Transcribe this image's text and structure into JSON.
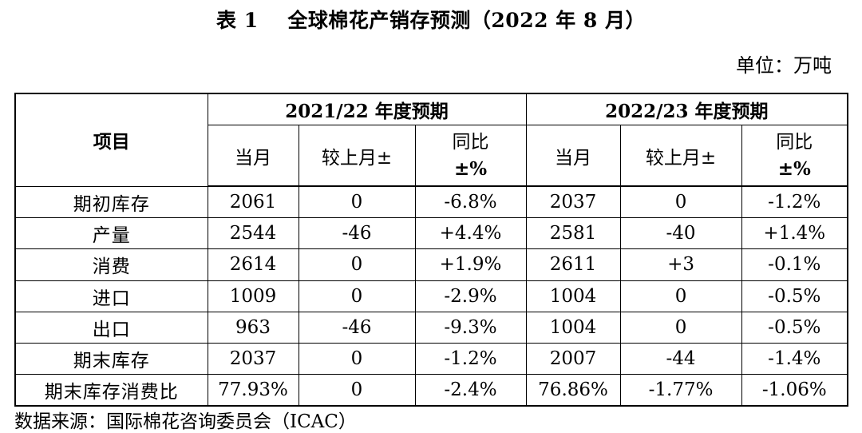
{
  "title": "表 1    全球棉花产销存预测（2022 年 8 月）",
  "unit_text": "单位：万吨",
  "table": {
    "item_header": "项目",
    "period_headers": [
      "2021/22 年度预期",
      "2022/23 年度预期"
    ],
    "sub_headers": {
      "current": "当月",
      "change": "较上月±",
      "yoy_line1": "同比",
      "yoy_line2": "±%"
    },
    "rows": [
      {
        "label": "期初库存",
        "cells": [
          "2061",
          "0",
          "-6.8%",
          "2037",
          "0",
          "-1.2%"
        ]
      },
      {
        "label": "产量",
        "cells": [
          "2544",
          "-46",
          "+4.4%",
          "2581",
          "-40",
          "+1.4%"
        ]
      },
      {
        "label": "消费",
        "cells": [
          "2614",
          "0",
          "+1.9%",
          "2611",
          "+3",
          "-0.1%"
        ]
      },
      {
        "label": "进口",
        "cells": [
          "1009",
          "0",
          "-2.9%",
          "1004",
          "0",
          "-0.5%"
        ]
      },
      {
        "label": "出口",
        "cells": [
          "963",
          "-46",
          "-9.3%",
          "1004",
          "0",
          "-0.5%"
        ]
      },
      {
        "label": "期末库存",
        "cells": [
          "2037",
          "0",
          "-1.2%",
          "2007",
          "-44",
          "-1.4%"
        ]
      },
      {
        "label": "期末库存消费比",
        "cells": [
          "77.93%",
          "0",
          "-2.4%",
          "76.86%",
          "-1.77%",
          "-1.06%"
        ]
      }
    ]
  },
  "source_text": "数据来源：国际棉花咨询委员会（ICAC）"
}
